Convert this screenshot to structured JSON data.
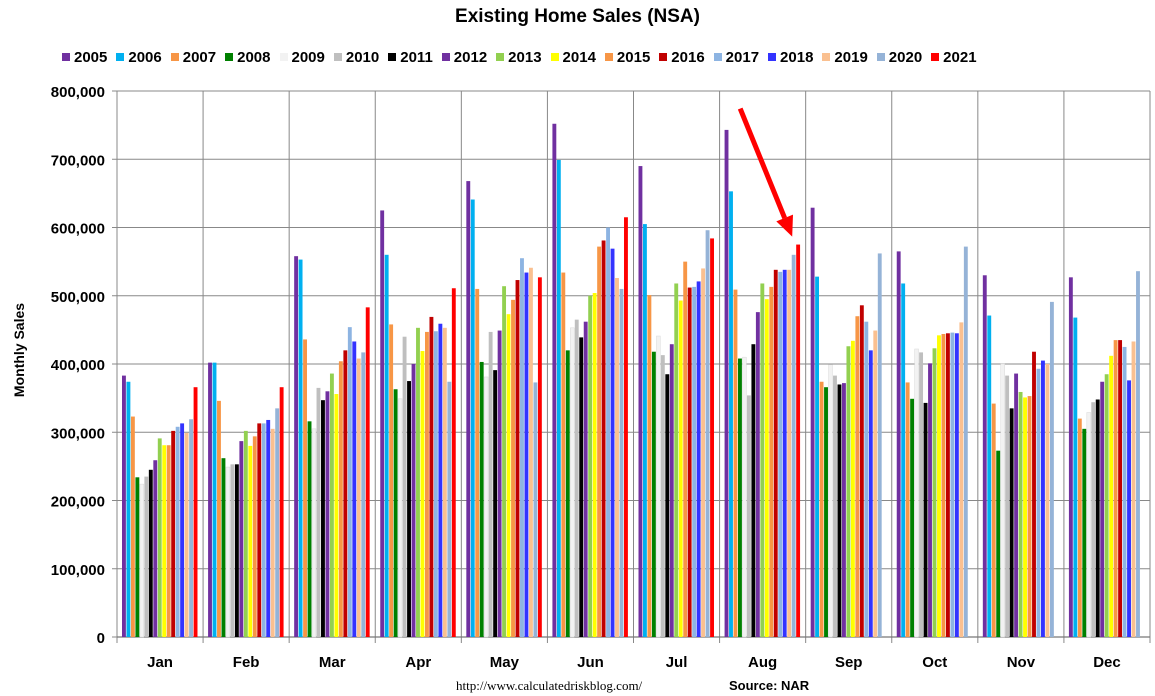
{
  "chart_data": {
    "type": "bar",
    "title": "Existing Home Sales (NSA)",
    "ylabel": "Monthly Sales",
    "xlabel": "",
    "ylim": [
      0,
      800000
    ],
    "ytick_labels": [
      "0",
      "100,000",
      "200,000",
      "300,000",
      "400,000",
      "500,000",
      "600,000",
      "700,000",
      "800,000"
    ],
    "ytick_values": [
      0,
      100000,
      200000,
      300000,
      400000,
      500000,
      600000,
      700000,
      800000
    ],
    "categories": [
      "Jan",
      "Feb",
      "Mar",
      "Apr",
      "May",
      "Jun",
      "Jul",
      "Aug",
      "Sep",
      "Oct",
      "Nov",
      "Dec"
    ],
    "grid": true,
    "legend_position": "top",
    "series": [
      {
        "name": "2005",
        "color": "#7030a0",
        "values": [
          383000,
          402000,
          558000,
          625000,
          668000,
          752000,
          690000,
          743000,
          629000,
          565000,
          530000,
          527000
        ]
      },
      {
        "name": "2006",
        "color": "#00b0f0",
        "values": [
          374000,
          402000,
          553000,
          560000,
          641000,
          699000,
          605000,
          653000,
          528000,
          518000,
          471000,
          468000
        ]
      },
      {
        "name": "2007",
        "color": "#f79646",
        "values": [
          323000,
          346000,
          436000,
          458000,
          510000,
          534000,
          501000,
          509000,
          374000,
          373000,
          342000,
          320000
        ]
      },
      {
        "name": "2008",
        "color": "#008000",
        "values": [
          234000,
          262000,
          316000,
          363000,
          403000,
          420000,
          418000,
          408000,
          366000,
          349000,
          273000,
          305000
        ]
      },
      {
        "name": "2009",
        "color": "#f2f2f2",
        "values": [
          224000,
          249000,
          305000,
          349000,
          381000,
          453000,
          441000,
          410000,
          399000,
          422000,
          400000,
          329000
        ]
      },
      {
        "name": "2010",
        "color": "#bfbfbf",
        "values": [
          235000,
          253000,
          365000,
          440000,
          447000,
          465000,
          413000,
          354000,
          383000,
          417000,
          383000,
          344000
        ]
      },
      {
        "name": "2011",
        "color": "#000000",
        "values": [
          245000,
          253000,
          347000,
          375000,
          391000,
          439000,
          385000,
          429000,
          370000,
          343000,
          335000,
          348000
        ]
      },
      {
        "name": "2012",
        "color": "#7030a0",
        "values": [
          259000,
          287000,
          360000,
          400000,
          449000,
          462000,
          429000,
          476000,
          372000,
          401000,
          386000,
          374000
        ]
      },
      {
        "name": "2013",
        "color": "#92d050",
        "values": [
          291000,
          302000,
          386000,
          453000,
          514000,
          500000,
          518000,
          518000,
          426000,
          423000,
          359000,
          385000
        ]
      },
      {
        "name": "2014",
        "color": "#ffff00",
        "values": [
          281000,
          280000,
          356000,
          419000,
          473000,
          504000,
          493000,
          495000,
          434000,
          442000,
          351000,
          412000
        ]
      },
      {
        "name": "2015",
        "color": "#f79646",
        "values": [
          281000,
          294000,
          404000,
          447000,
          494000,
          572000,
          550000,
          513000,
          470000,
          444000,
          353000,
          435000
        ]
      },
      {
        "name": "2016",
        "color": "#c00000",
        "values": [
          302000,
          313000,
          420000,
          469000,
          523000,
          581000,
          512000,
          538000,
          486000,
          445000,
          418000,
          435000
        ]
      },
      {
        "name": "2017",
        "color": "#8db4e2",
        "values": [
          308000,
          313000,
          454000,
          448000,
          555000,
          600000,
          513000,
          535000,
          462000,
          446000,
          393000,
          425000
        ]
      },
      {
        "name": "2018",
        "color": "#3333ff",
        "values": [
          313000,
          318000,
          433000,
          459000,
          534000,
          569000,
          521000,
          538000,
          420000,
          445000,
          405000,
          376000
        ]
      },
      {
        "name": "2019",
        "color": "#fac090",
        "values": [
          299000,
          305000,
          408000,
          453000,
          541000,
          526000,
          540000,
          538000,
          449000,
          461000,
          400000,
          433000
        ]
      },
      {
        "name": "2020",
        "color": "#95b3d7",
        "values": [
          319000,
          335000,
          417000,
          374000,
          373000,
          510000,
          596000,
          560000,
          562000,
          572000,
          491000,
          536000
        ]
      },
      {
        "name": "2021",
        "color": "#ff0000",
        "values": [
          366000,
          366000,
          483000,
          511000,
          527000,
          615000,
          584000,
          575000,
          null,
          null,
          null,
          null
        ]
      }
    ],
    "annotations": [
      {
        "type": "arrow",
        "color": "#ff0000",
        "target_category": "Aug",
        "target_series": "2021",
        "description": "red arrow pointing to Aug 2021 bar"
      }
    ]
  },
  "footer": {
    "url": "http://www.calculatedriskblog.com/",
    "source": "Source: NAR"
  }
}
